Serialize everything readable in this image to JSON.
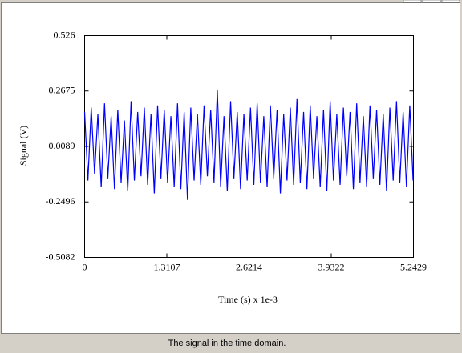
{
  "chart_data": {
    "type": "line",
    "caption": "The signal in the time domain.",
    "x_label": "Time (s) x 1e-3",
    "y_label": "Signal (V)",
    "color": "#0000ff",
    "grid": false,
    "xlim": [
      0,
      5.2429
    ],
    "xticks": [
      0,
      1.3107,
      2.6214,
      3.9322,
      5.2429
    ],
    "ylim": [
      -0.5082,
      0.526
    ],
    "yticks": [
      -0.5082,
      -0.2496,
      0.0089,
      0.2675,
      0.526
    ],
    "x": [
      0,
      0.0529,
      0.1058,
      0.1587,
      0.2116,
      0.2645,
      0.3174,
      0.3703,
      0.4232,
      0.4761,
      0.529,
      0.5819,
      0.6348,
      0.6877,
      0.7406,
      0.7935,
      0.8464,
      0.8993,
      0.9522,
      1.0051,
      1.058,
      1.1109,
      1.1638,
      1.2167,
      1.2696,
      1.3225,
      1.3754,
      1.4283,
      1.4812,
      1.5341,
      1.587,
      1.6399,
      1.6928,
      1.7457,
      1.7986,
      1.8515,
      1.9044,
      1.9573,
      2.0102,
      2.0631,
      2.116,
      2.1689,
      2.2218,
      2.2747,
      2.3276,
      2.3805,
      2.4334,
      2.4863,
      2.5392,
      2.5921,
      2.645,
      2.6979,
      2.7508,
      2.8037,
      2.8566,
      2.9095,
      2.9624,
      3.0153,
      3.0682,
      3.1211,
      3.174,
      3.2269,
      3.2798,
      3.3327,
      3.3856,
      3.4385,
      3.4914,
      3.5443,
      3.5972,
      3.6501,
      3.703,
      3.7559,
      3.8088,
      3.8617,
      3.9146,
      3.9675,
      4.0204,
      4.0733,
      4.1262,
      4.1791,
      4.232,
      4.2849,
      4.3378,
      4.3907,
      4.4436,
      4.4965,
      4.5494,
      4.6023,
      4.6552,
      4.7081,
      4.761,
      4.8139,
      4.8668,
      4.9197,
      4.9726,
      5.0255,
      5.0784,
      5.1313,
      5.1842,
      5.2371
    ],
    "values": [
      0.17,
      -0.15,
      0.19,
      -0.12,
      0.16,
      -0.18,
      0.21,
      -0.14,
      0.15,
      -0.19,
      0.18,
      -0.16,
      0.13,
      -0.2,
      0.22,
      -0.15,
      0.17,
      -0.13,
      0.19,
      -0.17,
      0.16,
      -0.21,
      0.2,
      -0.14,
      0.18,
      -0.16,
      0.15,
      -0.18,
      0.21,
      -0.19,
      0.17,
      -0.24,
      0.19,
      -0.15,
      0.16,
      -0.17,
      0.2,
      -0.13,
      0.18,
      -0.16,
      0.27,
      -0.18,
      0.15,
      -0.2,
      0.22,
      -0.14,
      0.17,
      -0.19,
      0.16,
      -0.15,
      0.19,
      -0.17,
      0.21,
      -0.16,
      0.15,
      -0.18,
      0.2,
      -0.14,
      0.18,
      -0.21,
      0.16,
      -0.15,
      0.19,
      -0.17,
      0.23,
      -0.16,
      0.17,
      -0.19,
      0.2,
      -0.14,
      0.15,
      -0.18,
      0.18,
      -0.2,
      0.22,
      -0.15,
      0.16,
      -0.17,
      0.19,
      -0.13,
      0.17,
      -0.19,
      0.21,
      -0.16,
      0.15,
      -0.18,
      0.2,
      -0.14,
      0.18,
      -0.17,
      0.16,
      -0.2,
      0.19,
      -0.15,
      0.22,
      -0.16,
      0.17,
      -0.18,
      0.2,
      -0.15
    ]
  }
}
